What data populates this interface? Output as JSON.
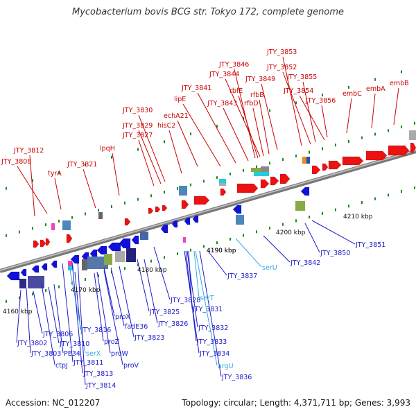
{
  "title": "Mycobacterium bovis BCG str. Tokyo 172, complete genome",
  "accession_label": "Accession: NC_012207",
  "topology_label": "Topology: circular; Length: 4,371,711 bp; Genes: 3,993",
  "colors": {
    "forward_label": "#cc0000",
    "reverse_label": "#1a1acc",
    "rna_label": "#33aadd",
    "forward_gene": "#ee1111",
    "reverse_gene": "#1111dd",
    "tick": "#1a8a1a",
    "backbone": "#999999"
  },
  "kbp_labels": [
    "4160 kbp",
    "4170 kbp",
    "4180 kbp",
    "4190 kbp",
    "4200 kbp",
    "4210 kbp"
  ],
  "top_labels": [
    "JTY_3853",
    "JTY_3852",
    "JTY_3846",
    "JTY_3844",
    "JTY_3855",
    "JTY_3849",
    "JTY_3841",
    "rbfE",
    "JTY_3854",
    "embB",
    "embA",
    "embC",
    "rfbB",
    "lipE",
    "JTY_3843",
    "rfbD",
    "JTY_3856",
    "echA21",
    "JTY_3830",
    "JTY_3829",
    "hisC2",
    "JTY_3827",
    "lpqH",
    "JTY_3812",
    "JTY_3808",
    "JTY_3821",
    "tyrA"
  ],
  "bottom_labels": [
    "JTY_3851",
    "JTY_3850",
    "JTY_3842",
    "serU",
    "JTY_3837",
    "4190 kbp",
    "JTY_3828",
    "serT",
    "JTY_3831",
    "JTY_3825",
    "JTY_3826",
    "JTY_3832",
    "proX",
    "fadE36",
    "JTY_3823",
    "JTY_3833",
    "JTY_3834",
    "argU",
    "JTY_3836",
    "JTY_3816",
    "proZ",
    "proW",
    "proV",
    "JTY_3806",
    "JTY_3810",
    "JTY_3802",
    "PE34",
    "JTY_3803",
    "ctpJ",
    "serX",
    "JTY_3811",
    "JTY_3813",
    "JTY_3814"
  ]
}
